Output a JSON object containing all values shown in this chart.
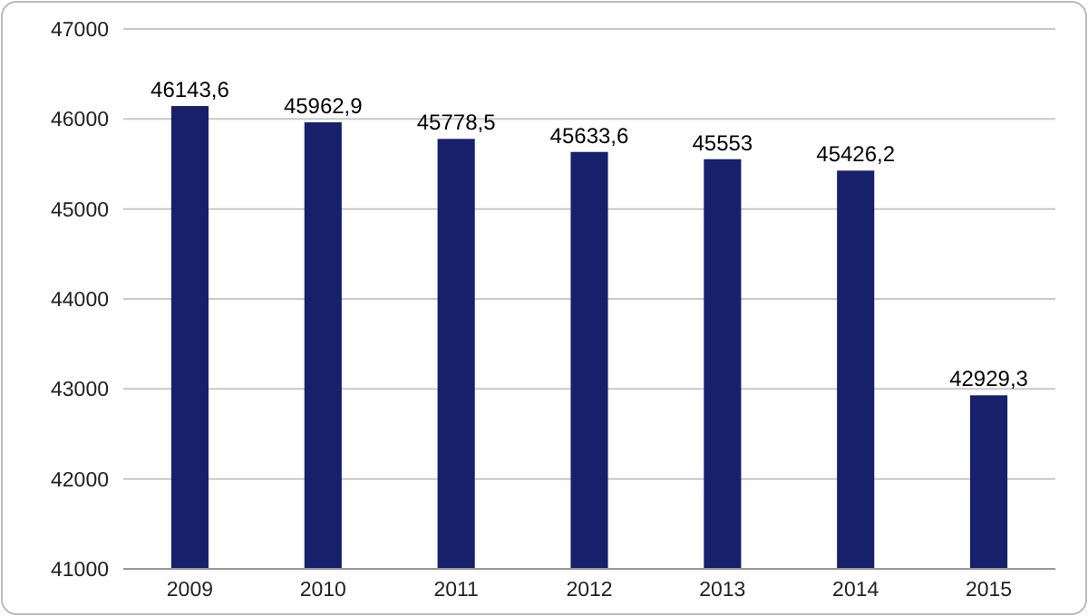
{
  "chart_data": {
    "type": "bar",
    "categories": [
      "2009",
      "2010",
      "2011",
      "2012",
      "2013",
      "2014",
      "2015"
    ],
    "values": [
      46143.6,
      45962.9,
      45778.5,
      45633.6,
      45553,
      45426.2,
      42929.3
    ],
    "value_labels": [
      "46143,6",
      "45962,9",
      "45778,5",
      "45633,6",
      "45553",
      "45426,2",
      "42929,3"
    ],
    "color": "#16206b",
    "ylim": [
      41000,
      47000
    ],
    "yticks": [
      41000,
      42000,
      43000,
      44000,
      45000,
      46000,
      47000
    ],
    "grid": "y"
  }
}
